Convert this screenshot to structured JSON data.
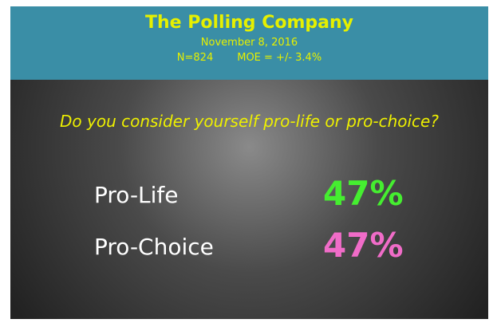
{
  "header": {
    "title": "The Polling Company",
    "date": "November 8, 2016",
    "sample": "N=824",
    "moe": "MOE = +/- 3.4%"
  },
  "question": "Do you consider yourself pro-life or pro-choice?",
  "results": [
    {
      "label": "Pro-Life",
      "value": "47%"
    },
    {
      "label": "Pro-Choice",
      "value": "47%"
    }
  ]
}
